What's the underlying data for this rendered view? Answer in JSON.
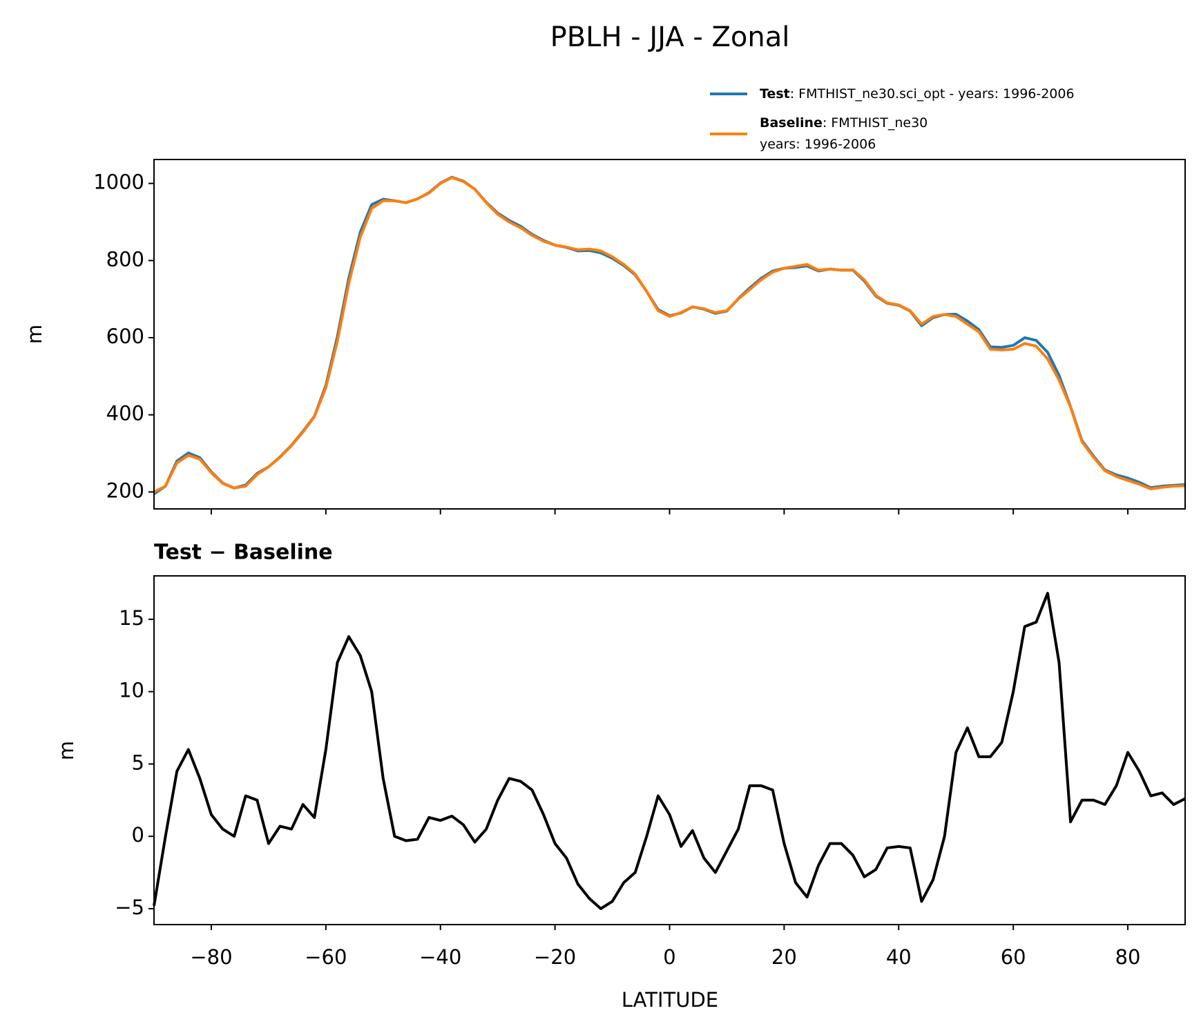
{
  "title": "PBLH - JJA - Zonal",
  "chart_data": [
    {
      "type": "line",
      "ylabel": "m",
      "x": [
        -90,
        -88,
        -86,
        -84,
        -82,
        -80,
        -78,
        -76,
        -74,
        -72,
        -70,
        -68,
        -66,
        -64,
        -62,
        -60,
        -58,
        -56,
        -54,
        -52,
        -50,
        -48,
        -46,
        -44,
        -42,
        -40,
        -38,
        -36,
        -34,
        -32,
        -30,
        -28,
        -26,
        -24,
        -22,
        -20,
        -18,
        -16,
        -14,
        -12,
        -10,
        -8,
        -6,
        -4,
        -2,
        0,
        2,
        4,
        6,
        8,
        10,
        12,
        14,
        16,
        18,
        20,
        22,
        24,
        26,
        28,
        30,
        32,
        34,
        36,
        38,
        40,
        42,
        44,
        46,
        48,
        50,
        52,
        54,
        56,
        58,
        60,
        62,
        64,
        66,
        68,
        70,
        72,
        74,
        76,
        78,
        80,
        82,
        84,
        86,
        88,
        90
      ],
      "series": [
        {
          "name": "Test",
          "label": [
            ": FMTHIST_ne30.sci_opt - years: 1996-2006"
          ],
          "color": "#1f77b4",
          "values": [
            195,
            215,
            280,
            301,
            289,
            252,
            223,
            210,
            218,
            248,
            265,
            291,
            321,
            357,
            396,
            476,
            602,
            754,
            873,
            945,
            959,
            955,
            950,
            960,
            976,
            1001,
            1016,
            1006,
            985,
            951,
            923,
            904,
            889,
            868,
            852,
            840,
            834,
            825,
            826,
            820,
            806,
            787,
            763,
            720,
            673,
            657,
            664,
            680,
            674,
            663,
            669,
            701,
            729,
            754,
            773,
            780,
            782,
            786,
            773,
            778,
            775,
            775,
            747,
            708,
            689,
            684,
            669,
            631,
            652,
            660,
            661,
            643,
            621,
            576,
            575,
            580,
            600,
            593,
            562,
            502,
            421,
            333,
            293,
            257,
            244,
            236,
            225,
            211,
            215,
            217,
            219
          ]
        },
        {
          "name": "Baseline",
          "label": [
            ": FMTHIST_ne30",
            "years: 1996-2006"
          ],
          "color": "#ff7f0e",
          "values": [
            200,
            215,
            275,
            295,
            285,
            250,
            222,
            210,
            215,
            245,
            265,
            290,
            320,
            355,
            395,
            470,
            590,
            740,
            860,
            935,
            955,
            955,
            950,
            960,
            975,
            1000,
            1015,
            1005,
            985,
            950,
            920,
            900,
            885,
            865,
            850,
            840,
            835,
            828,
            830,
            825,
            810,
            790,
            765,
            720,
            670,
            655,
            665,
            680,
            675,
            665,
            670,
            700,
            725,
            750,
            770,
            780,
            785,
            790,
            775,
            778,
            775,
            776,
            750,
            710,
            690,
            685,
            670,
            635,
            655,
            660,
            655,
            635,
            615,
            570,
            568,
            570,
            585,
            578,
            545,
            490,
            420,
            330,
            290,
            255,
            240,
            230,
            220,
            208,
            212,
            215,
            216
          ]
        }
      ],
      "xlim": [
        -90,
        90
      ],
      "ylim": [
        156,
        1062
      ],
      "yticks": [
        200,
        400,
        600,
        800,
        1000
      ]
    },
    {
      "type": "line",
      "title": "Test − Baseline",
      "ylabel": "m",
      "xlabel": "LATITUDE",
      "x": [
        -90,
        -88,
        -86,
        -84,
        -82,
        -80,
        -78,
        -76,
        -74,
        -72,
        -70,
        -68,
        -66,
        -64,
        -62,
        -60,
        -58,
        -56,
        -54,
        -52,
        -50,
        -48,
        -46,
        -44,
        -42,
        -40,
        -38,
        -36,
        -34,
        -32,
        -30,
        -28,
        -26,
        -24,
        -22,
        -20,
        -18,
        -16,
        -14,
        -12,
        -10,
        -8,
        -6,
        -4,
        -2,
        0,
        2,
        4,
        6,
        8,
        10,
        12,
        14,
        16,
        18,
        20,
        22,
        24,
        26,
        28,
        30,
        32,
        34,
        36,
        38,
        40,
        42,
        44,
        46,
        48,
        50,
        52,
        54,
        56,
        58,
        60,
        62,
        64,
        66,
        68,
        70,
        72,
        74,
        76,
        78,
        80,
        82,
        84,
        86,
        88,
        90
      ],
      "color": "#000000",
      "values": [
        -4.8,
        0,
        4.5,
        6,
        4,
        1.5,
        0.5,
        0,
        2.8,
        2.5,
        -0.5,
        0.7,
        0.5,
        2.2,
        1.3,
        6,
        12,
        13.8,
        12.5,
        10,
        4,
        0,
        -0.3,
        -0.2,
        1.3,
        1.1,
        1.4,
        0.8,
        -0.4,
        0.5,
        2.5,
        4,
        3.8,
        3.2,
        1.5,
        -0.5,
        -1.5,
        -3.3,
        -4.3,
        -5,
        -4.5,
        -3.2,
        -2.5,
        0,
        2.8,
        1.5,
        -0.7,
        0.4,
        -1.5,
        -2.5,
        -1,
        0.5,
        3.5,
        3.5,
        3.2,
        -0.5,
        -3.2,
        -4.2,
        -2,
        -0.5,
        -0.5,
        -1.3,
        -2.8,
        -2.3,
        -0.8,
        -0.7,
        -0.8,
        -4.5,
        -3,
        0,
        5.8,
        7.5,
        5.5,
        5.5,
        6.5,
        10,
        14.5,
        14.8,
        16.8,
        12,
        1,
        2.5,
        2.5,
        2.2,
        3.5,
        5.8,
        4.5,
        2.8,
        3,
        2.2,
        2.6
      ],
      "xlim": [
        -90,
        90
      ],
      "ylim": [
        -6.1,
        18.0
      ],
      "yticks": [
        {
          "value": -5,
          "label": "−5"
        },
        0,
        5,
        10,
        15
      ],
      "xticks": [
        {
          "value": -80,
          "label": "−80"
        },
        {
          "value": -60,
          "label": "−60"
        },
        {
          "value": -40,
          "label": "−40"
        },
        {
          "value": -20,
          "label": "−20"
        },
        0,
        20,
        40,
        60,
        80
      ]
    }
  ]
}
